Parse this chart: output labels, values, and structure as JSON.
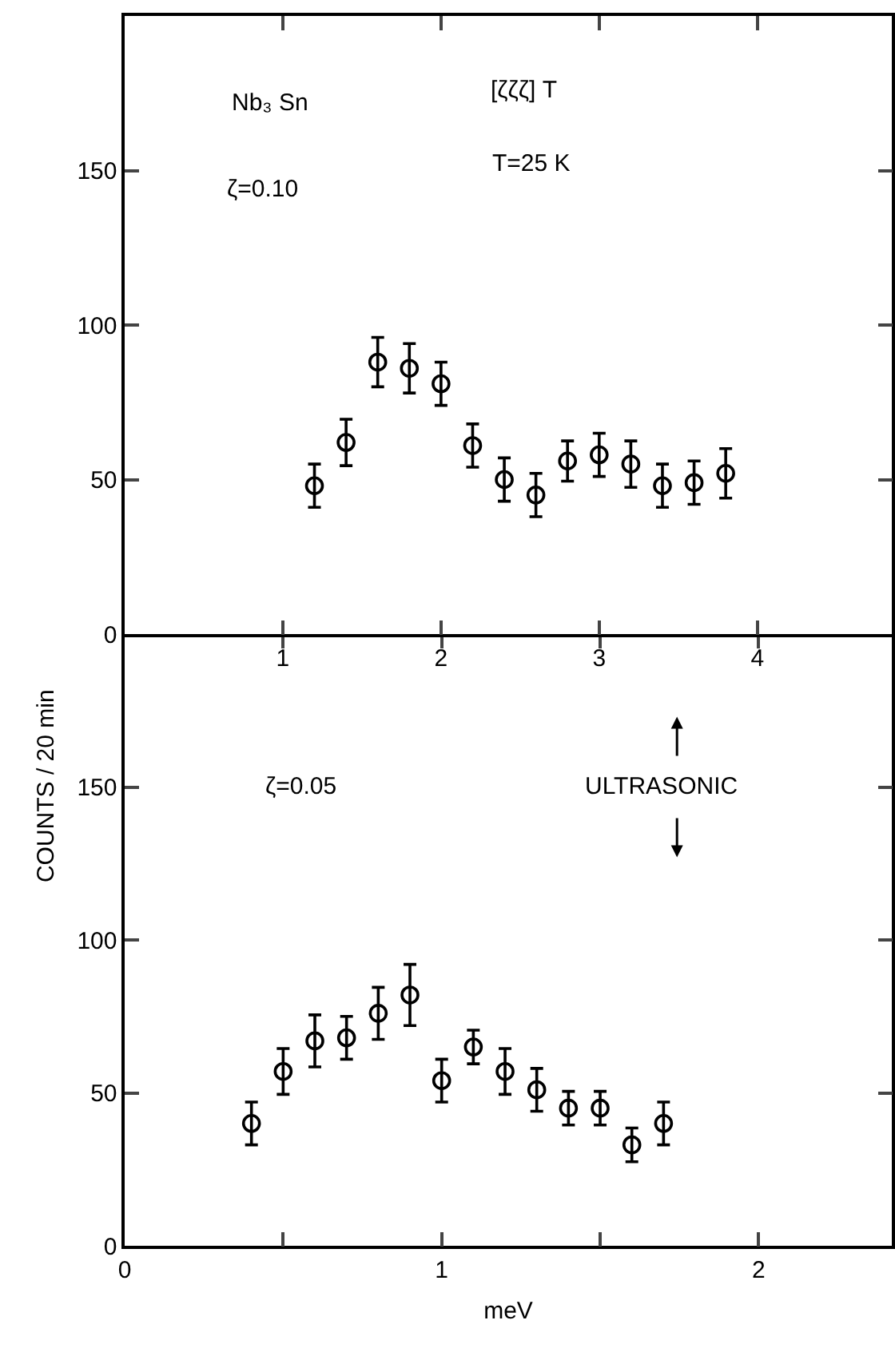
{
  "chart_data": [
    {
      "type": "scatter",
      "x": [
        1.2,
        1.4,
        1.6,
        1.8,
        2.0,
        2.2,
        2.4,
        2.6,
        2.8,
        3.0,
        3.2,
        3.4,
        3.6,
        3.8
      ],
      "series": [
        {
          "color": "#000000",
          "values": [
            48,
            62,
            88,
            86,
            81,
            61,
            50,
            45,
            56,
            58,
            55,
            48,
            49,
            52
          ],
          "errors": [
            7,
            7.5,
            8,
            8,
            7,
            7,
            7,
            7,
            6.5,
            7,
            7.5,
            7,
            7,
            8
          ]
        }
      ],
      "xlim": [
        0,
        4.85
      ],
      "xticks": [
        1,
        2,
        3,
        4
      ],
      "ylim": [
        0,
        200
      ],
      "yticks": [
        0,
        50,
        100,
        150
      ],
      "marker": "circle",
      "annotations": [
        "Nb₃ Sn",
        "[ζζζ] T",
        "T=25 K",
        "ζ=0.10"
      ]
    },
    {
      "type": "scatter",
      "x": [
        0.4,
        0.5,
        0.6,
        0.7,
        0.8,
        0.9,
        1.0,
        1.1,
        1.2,
        1.3,
        1.4,
        1.5,
        1.6,
        1.7
      ],
      "series": [
        {
          "color": "#000000",
          "values": [
            40,
            57,
            67,
            68,
            76,
            82,
            54,
            65,
            57,
            51,
            45,
            45,
            33,
            40
          ],
          "errors": [
            7,
            7.5,
            8.5,
            7,
            8.5,
            10,
            7,
            5.5,
            7.5,
            7,
            5.5,
            5.5,
            5.5,
            7
          ]
        }
      ],
      "xlim": [
        0,
        2.42
      ],
      "xticks": [
        0,
        {
          "value": 0.5,
          "label": null
        },
        1,
        {
          "value": 1.5,
          "label": null
        },
        2
      ],
      "ylim": [
        0,
        200
      ],
      "yticks": [
        0,
        50,
        100,
        150
      ],
      "xlabel": "meV",
      "ylabel": "COUNTS / 20 min",
      "marker": "circle",
      "annotations": [
        "ζ=0.05",
        "ULTRASONIC"
      ]
    }
  ]
}
